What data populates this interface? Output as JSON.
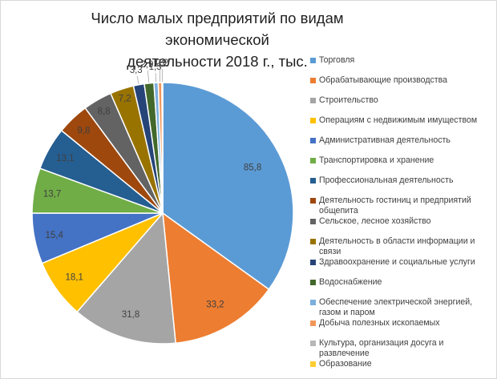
{
  "chart_data": {
    "type": "pie",
    "title_line1": "Число малых предприятий по видам экономической",
    "title_line2": "деятельности  2018 г., тыс.",
    "legend_position": "right",
    "slices": [
      {
        "name": "Торговля",
        "value": 85.8,
        "label": "85,8",
        "color": "#5b9bd5"
      },
      {
        "name": "Обрабатывающие производства",
        "value": 33.2,
        "label": "33,2",
        "color": "#ed7d31"
      },
      {
        "name": "Строительство",
        "value": 31.8,
        "label": "31,8",
        "color": "#a5a5a5"
      },
      {
        "name": "Операциям с недвижимым имуществом",
        "value": 18.1,
        "label": "18,1",
        "color": "#ffc000"
      },
      {
        "name": "Административная деятельность",
        "value": 15.4,
        "label": "15,4",
        "color": "#4472c4"
      },
      {
        "name": "Транспортировка и хранение",
        "value": 13.7,
        "label": "13,7",
        "color": "#70ad47"
      },
      {
        "name": "Профессиональная деятельность",
        "value": 13.1,
        "label": "13,1",
        "color": "#255e91"
      },
      {
        "name": "Деятельность гостиниц и предприятий общепита",
        "value": 9.8,
        "label": "9,8",
        "color": "#9e480e"
      },
      {
        "name": "Сельское, лесное хозяйство",
        "value": 8.8,
        "label": "8,8",
        "color": "#636363"
      },
      {
        "name": "Деятельность в области информации и связи",
        "value": 7.2,
        "label": "7,2",
        "color": "#997300"
      },
      {
        "name": "Здравоохранение и социальные услуги",
        "value": 3.3,
        "label": "3,3",
        "color": "#264478"
      },
      {
        "name": "Водоснабжение",
        "value": 2.9,
        "label": "2,9",
        "color": "#43682b"
      },
      {
        "name": "Обеспечение электрической энергией, газом и паром",
        "value": 1.3,
        "label": "1,3",
        "color": "#7cafdd"
      },
      {
        "name": "Добыча полезных ископаемых",
        "value": 1.1,
        "label": "1,1",
        "color": "#f1975a"
      },
      {
        "name": "Культура, организация досуга и развлечение",
        "value": 0.2,
        "label": "0,2",
        "color": "#b7b7b7"
      },
      {
        "name": "Образование",
        "value": 0.05,
        "label": "",
        "color": "#ffcd33"
      }
    ]
  }
}
